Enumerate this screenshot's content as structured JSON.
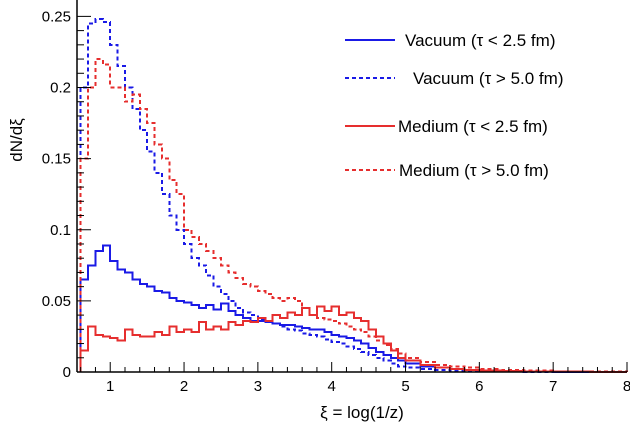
{
  "chart_data": {
    "type": "line",
    "xlabel": "ξ = log(1/z)",
    "ylabel": "dN/dξ",
    "xlim": [
      0.55,
      8.0
    ],
    "ylim": [
      0,
      0.258
    ],
    "x_ticks": [
      1,
      2,
      3,
      4,
      5,
      6,
      7,
      8
    ],
    "x_tick_labels": [
      "1",
      "2",
      "3",
      "4",
      "5",
      "6",
      "7",
      "8"
    ],
    "y_ticks": [
      0,
      0.05,
      0.1,
      0.15,
      0.2,
      0.25
    ],
    "y_tick_labels": [
      "0",
      "0.05",
      "0.1",
      "0.15",
      "0.2",
      "0.25"
    ],
    "grid": false,
    "legend_position": "top-right",
    "x": [
      0.6,
      0.7,
      0.8,
      0.9,
      1.0,
      1.1,
      1.2,
      1.3,
      1.4,
      1.5,
      1.6,
      1.7,
      1.8,
      1.9,
      2.0,
      2.1,
      2.2,
      2.3,
      2.4,
      2.5,
      2.6,
      2.7,
      2.8,
      2.9,
      3.0,
      3.1,
      3.2,
      3.3,
      3.4,
      3.5,
      3.6,
      3.7,
      3.8,
      3.9,
      4.0,
      4.1,
      4.2,
      4.3,
      4.4,
      4.5,
      4.6,
      4.7,
      4.8,
      4.9,
      5.0,
      5.2,
      5.4,
      5.6,
      5.8,
      6.0,
      6.3,
      6.6,
      7.0,
      7.5,
      8.0
    ],
    "series": [
      {
        "name": "Vacuum (τ < 2.5 fm)",
        "color": "#1a1ae6",
        "dash": "solid",
        "values": [
          0.065,
          0.075,
          0.085,
          0.089,
          0.078,
          0.072,
          0.07,
          0.065,
          0.062,
          0.06,
          0.057,
          0.056,
          0.052,
          0.05,
          0.049,
          0.047,
          0.045,
          0.047,
          0.044,
          0.048,
          0.043,
          0.04,
          0.038,
          0.036,
          0.036,
          0.035,
          0.034,
          0.033,
          0.033,
          0.032,
          0.031,
          0.03,
          0.03,
          0.028,
          0.026,
          0.025,
          0.024,
          0.022,
          0.02,
          0.017,
          0.014,
          0.012,
          0.01,
          0.008,
          0.006,
          0.004,
          0.003,
          0.002,
          0.0015,
          0.001,
          0.0005,
          0.0003,
          0.0001,
          0.0,
          0.0
        ]
      },
      {
        "name": "Vacuum (τ > 5.0 fm)",
        "color": "#1a1ae6",
        "dash": "dashed",
        "values": [
          0.2,
          0.245,
          0.248,
          0.246,
          0.23,
          0.215,
          0.2,
          0.185,
          0.17,
          0.155,
          0.14,
          0.125,
          0.11,
          0.1,
          0.09,
          0.08,
          0.075,
          0.068,
          0.06,
          0.055,
          0.05,
          0.045,
          0.042,
          0.04,
          0.037,
          0.035,
          0.034,
          0.032,
          0.03,
          0.029,
          0.027,
          0.026,
          0.025,
          0.023,
          0.021,
          0.02,
          0.018,
          0.016,
          0.014,
          0.012,
          0.01,
          0.008,
          0.006,
          0.004,
          0.003,
          0.002,
          0.0015,
          0.001,
          0.0005,
          0.0003,
          0.0002,
          0.0001,
          0.0,
          0.0,
          0.0
        ]
      },
      {
        "name": "Medium (τ < 2.5 fm)",
        "color": "#e62e2e",
        "dash": "solid",
        "values": [
          0.015,
          0.032,
          0.026,
          0.025,
          0.024,
          0.022,
          0.03,
          0.026,
          0.025,
          0.025,
          0.028,
          0.026,
          0.032,
          0.028,
          0.03,
          0.028,
          0.035,
          0.03,
          0.032,
          0.03,
          0.035,
          0.033,
          0.036,
          0.035,
          0.038,
          0.036,
          0.04,
          0.038,
          0.042,
          0.04,
          0.045,
          0.04,
          0.046,
          0.043,
          0.046,
          0.04,
          0.042,
          0.038,
          0.036,
          0.03,
          0.025,
          0.02,
          0.015,
          0.01,
          0.008,
          0.005,
          0.003,
          0.002,
          0.0015,
          0.001,
          0.0008,
          0.0005,
          0.0003,
          0.0001,
          0.0
        ]
      },
      {
        "name": "Medium (τ > 5.0 fm)",
        "color": "#e62e2e",
        "dash": "dashed",
        "values": [
          0.15,
          0.2,
          0.22,
          0.216,
          0.2,
          0.2,
          0.19,
          0.195,
          0.185,
          0.175,
          0.16,
          0.15,
          0.135,
          0.125,
          0.1,
          0.095,
          0.09,
          0.085,
          0.08,
          0.075,
          0.07,
          0.066,
          0.062,
          0.06,
          0.057,
          0.055,
          0.052,
          0.05,
          0.052,
          0.05,
          0.045,
          0.04,
          0.038,
          0.037,
          0.036,
          0.034,
          0.032,
          0.03,
          0.028,
          0.025,
          0.022,
          0.019,
          0.016,
          0.013,
          0.01,
          0.007,
          0.005,
          0.004,
          0.003,
          0.002,
          0.0015,
          0.001,
          0.0005,
          0.0002,
          0.0
        ]
      }
    ]
  }
}
